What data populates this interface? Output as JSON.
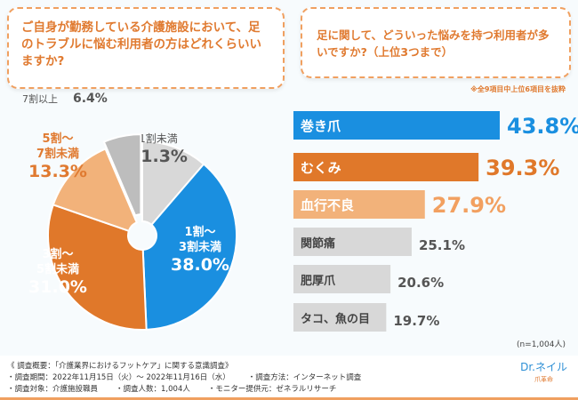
{
  "questions": {
    "left": "ご自身が勤務している介護施設において、足のトラブルに悩む利用者の方はどれくらいいますか?",
    "right": "足に関して、どういった悩みを持つ利用者が多いですか?（上位3つまで）"
  },
  "note": "※全9項目中上位6項目を抜粋",
  "sample": "(n=1,004人)",
  "chart_data": [
    {
      "type": "pie",
      "categories": [
        "1割未満",
        "1割～3割未満",
        "3割～5割未満",
        "5割～7割未満",
        "7割以上"
      ],
      "values": [
        11.3,
        38.0,
        31.0,
        13.3,
        6.4
      ],
      "colors": [
        "#d8d8d8",
        "#1a8fe0",
        "#e0782a",
        "#f2b27a",
        "#bdbdbd"
      ],
      "unit": "%"
    },
    {
      "type": "bar",
      "categories": [
        "巻き爪",
        "むくみ",
        "血行不良",
        "関節痛",
        "肥厚爪",
        "タコ、魚の目"
      ],
      "values": [
        43.8,
        39.3,
        27.9,
        25.1,
        20.6,
        19.7
      ],
      "colors": [
        "#1a8fe0",
        "#e0782a",
        "#f2b27a",
        "#d8d8d8",
        "#d8d8d8",
        "#d8d8d8"
      ],
      "unit": "%"
    }
  ],
  "footer": {
    "title": "《 調査概要：「介護業界におけるフットケア」に関する意識調査》",
    "period": "・調査期間：2022年11月15日（火）～ 2022年11月16日（水）",
    "method": "・調査方法：インターネット調査",
    "target": "・調査対象：介護施設職員",
    "count": "・調査人数：1,004人",
    "provider": "・モニター提供元：ゼネラルリサーチ"
  },
  "logo": {
    "name": "Dr.ネイル",
    "sub": "爪革命"
  }
}
